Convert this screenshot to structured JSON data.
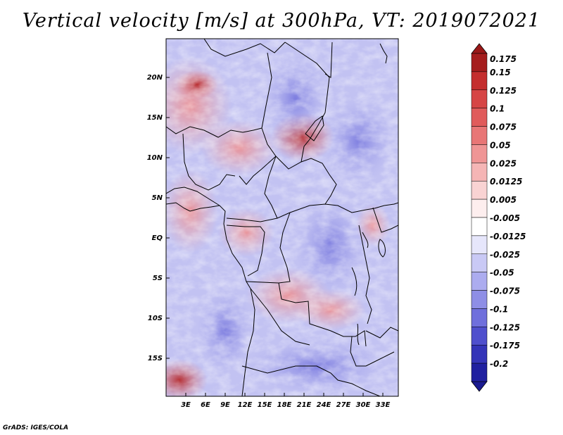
{
  "title": "Vertical velocity [m/s] at 300hPa, VT: 2019072021",
  "credit": "GrADS: IGES/COLA",
  "map": {
    "lat_ticks": [
      "20N",
      "15N",
      "10N",
      "5N",
      "EQ",
      "5S",
      "10S",
      "15S"
    ],
    "lon_ticks": [
      "3E",
      "6E",
      "9E",
      "12E",
      "15E",
      "18E",
      "21E",
      "24E",
      "27E",
      "30E",
      "33E"
    ]
  },
  "colorbar": {
    "labels": [
      "0.175",
      "0.15",
      "0.125",
      "0.1",
      "0.075",
      "0.05",
      "0.025",
      "0.0125",
      "0.005",
      "-0.005",
      "-0.0125",
      "-0.025",
      "-0.05",
      "-0.075",
      "-0.1",
      "-0.125",
      "-0.175",
      "-0.2"
    ],
    "colors": [
      "#a51d1d",
      "#c42e2e",
      "#d64545",
      "#e05b5b",
      "#e87676",
      "#ef9595",
      "#f5b5b5",
      "#f9d3d3",
      "#fdeeee",
      "#ffffff",
      "#e6e6fb",
      "#c9c9f5",
      "#acacef",
      "#8e8ee6",
      "#6f6fdc",
      "#4f4fcd",
      "#3434b8",
      "#2020a0"
    ],
    "top_color": "#9a1818",
    "bottom_color": "#1a1a90"
  }
}
